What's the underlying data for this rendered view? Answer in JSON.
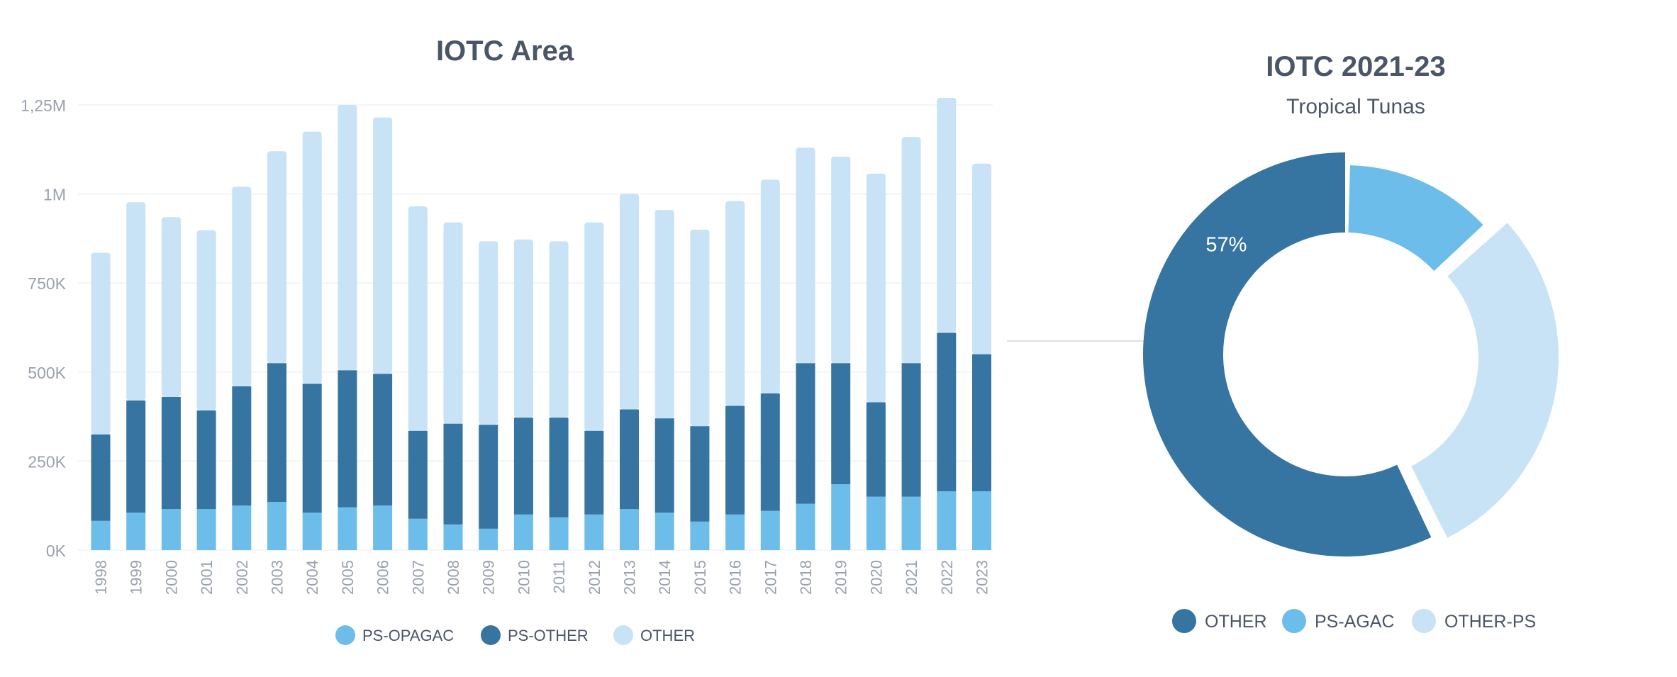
{
  "colors": {
    "ps_opagac": "#6cbdea",
    "ps_other": "#3674a1",
    "other": "#c8e2f6",
    "text": "#4b5568",
    "tick": "#9aa1ad",
    "grid": "#eef0f3"
  },
  "chart_data": [
    {
      "type": "bar",
      "stacked": true,
      "title": "IOTC Area",
      "xlabel": "",
      "ylabel": "",
      "ylim": [
        0,
        1250000
      ],
      "y_ticks": [
        "0K",
        "250K",
        "500K",
        "750K",
        "1M",
        "1,25M"
      ],
      "grid": true,
      "legend_position": "bottom",
      "categories": [
        "1998",
        "1999",
        "2000",
        "2001",
        "2002",
        "2003",
        "2004",
        "2005",
        "2006",
        "2007",
        "2008",
        "2009",
        "2010",
        "2011",
        "2012",
        "2013",
        "2014",
        "2015",
        "2016",
        "2017",
        "2018",
        "2019",
        "2020",
        "2021",
        "2022",
        "2023"
      ],
      "series": [
        {
          "name": "PS-OPAGAC",
          "color": "#6cbdea",
          "values": [
            82000,
            105000,
            115000,
            115000,
            125000,
            135000,
            105000,
            120000,
            125000,
            88000,
            72000,
            60000,
            100000,
            92000,
            100000,
            115000,
            105000,
            80000,
            100000,
            110000,
            130000,
            185000,
            150000,
            150000,
            165000,
            165000
          ]
        },
        {
          "name": "PS-OTHER",
          "color": "#3674a1",
          "values": [
            243000,
            315000,
            315000,
            277000,
            335000,
            390000,
            362000,
            385000,
            370000,
            247000,
            283000,
            292000,
            272000,
            280000,
            235000,
            280000,
            265000,
            268000,
            305000,
            330000,
            395000,
            340000,
            265000,
            375000,
            445000,
            385000
          ]
        },
        {
          "name": "OTHER",
          "color": "#c8e2f6",
          "values": [
            510000,
            557000,
            505000,
            506000,
            560000,
            595000,
            708000,
            745000,
            720000,
            630000,
            565000,
            515000,
            500000,
            495000,
            585000,
            605000,
            585000,
            552000,
            575000,
            600000,
            605000,
            580000,
            642000,
            635000,
            660000,
            535000
          ]
        }
      ]
    },
    {
      "type": "pie",
      "donut": true,
      "title": "IOTC 2021-23",
      "subtitle": "Tropical Tunas",
      "legend_position": "bottom",
      "slices": [
        {
          "name": "OTHER",
          "value": 57,
          "label": "57%",
          "color": "#3674a1"
        },
        {
          "name": "PS-AGAC",
          "value": 13,
          "color": "#6cbdea"
        },
        {
          "name": "OTHER-PS",
          "value": 30,
          "color": "#c8e2f6"
        }
      ]
    }
  ]
}
